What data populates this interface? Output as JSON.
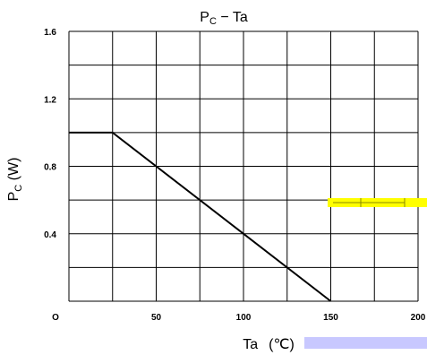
{
  "chart_data": {
    "type": "line",
    "title": {
      "main": "P",
      "sub": "C",
      "rest": " − Ta"
    },
    "ylabel": {
      "main": "P",
      "sub": "C",
      "unit": " (W)"
    },
    "xlabel": {
      "main": "Ta",
      "unit": "(℃)"
    },
    "origin_label": "O",
    "xlim": [
      0,
      200
    ],
    "ylim": [
      0,
      1.6
    ],
    "x_grid": [
      0,
      25,
      50,
      75,
      100,
      125,
      150,
      175,
      200
    ],
    "y_grid": [
      0,
      0.2,
      0.4,
      0.6,
      0.8,
      1.0,
      1.2,
      1.4,
      1.6
    ],
    "x_ticks": [
      {
        "value": 50,
        "label": "50"
      },
      {
        "value": 100,
        "label": "100"
      },
      {
        "value": 150,
        "label": "150"
      },
      {
        "value": 200,
        "label": "200"
      }
    ],
    "y_ticks": [
      {
        "value": 0.4,
        "label": "0.4"
      },
      {
        "value": 0.8,
        "label": "0.8"
      },
      {
        "value": 1.2,
        "label": "1.2"
      },
      {
        "value": 1.6,
        "label": "1.6"
      }
    ],
    "grid": true,
    "series": [
      {
        "x": [
          0,
          25,
          150
        ],
        "y": [
          1.0,
          1.0,
          0
        ]
      }
    ],
    "colors": {
      "line": "#000000",
      "grid": "#000000",
      "highlight": "#ffff00",
      "band": "#c8c8ff"
    }
  }
}
